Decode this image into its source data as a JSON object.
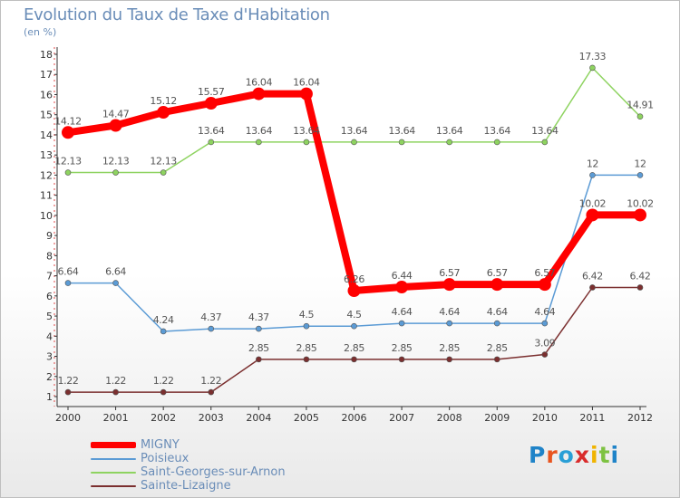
{
  "header": {
    "title": "Evolution du Taux de Taxe d'Habitation",
    "subtitle": "(en %)"
  },
  "logo": {
    "text": "Proxiti",
    "letter_colors": [
      "#1f83c8",
      "#e8541f",
      "#2a9fd6",
      "#d92b2b",
      "#f0b400",
      "#7dc242",
      "#1f83c8"
    ]
  },
  "colors": {
    "background": "#ffffff",
    "axis": "#333333",
    "label_text": "#555555",
    "title_text": "#6a8db8"
  },
  "chart_data": {
    "type": "line",
    "title": "Evolution du Taux de Taxe d'Habitation",
    "subtitle": "(en %)",
    "x": [
      "2000",
      "2001",
      "2002",
      "2003",
      "2004",
      "2005",
      "2006",
      "2007",
      "2008",
      "2009",
      "2010",
      "2011",
      "2012"
    ],
    "y_ticks": [
      "1",
      "2",
      "3",
      "4",
      "5",
      "6",
      "7",
      "8",
      "9",
      "10",
      "11",
      "12",
      "13",
      "14",
      "15",
      "16",
      "17",
      "18"
    ],
    "ylim": [
      0.5,
      18
    ],
    "grid": false,
    "legend_position": "bottom-left",
    "series": [
      {
        "name": "MIGNY",
        "color": "#ff0000",
        "values": [
          14.12,
          14.47,
          15.12,
          15.57,
          16.04,
          16.04,
          6.26,
          6.44,
          6.57,
          6.57,
          6.57,
          10.02,
          10.02
        ],
        "labels": [
          "14.12",
          "14.47",
          "15.12",
          "15.57",
          "16.04",
          "16.04",
          "6.26",
          "6.44",
          "6.57",
          "6.57",
          "6.57",
          "10.02",
          "10.02"
        ],
        "emphasis": true
      },
      {
        "name": "Poisieux",
        "color": "#5b9bd5",
        "values": [
          6.64,
          6.64,
          4.24,
          4.37,
          4.37,
          4.5,
          4.5,
          4.64,
          4.64,
          4.64,
          4.64,
          12,
          12
        ],
        "labels": [
          "6.64",
          "6.64",
          "4.24",
          "4.37",
          "4.37",
          "4.5",
          "4.5",
          "4.64",
          "4.64",
          "4.64",
          "4.64",
          "12",
          "12"
        ]
      },
      {
        "name": "Saint-Georges-sur-Arnon",
        "color": "#8ed360",
        "values": [
          12.13,
          12.13,
          12.13,
          13.64,
          13.64,
          13.64,
          13.64,
          13.64,
          13.64,
          13.64,
          13.64,
          17.33,
          14.91
        ],
        "labels": [
          "12.13",
          "12.13",
          "12.13",
          "13.64",
          "13.64",
          "13.64",
          "13.64",
          "13.64",
          "13.64",
          "13.64",
          "13.64",
          "17.33",
          "14.91"
        ]
      },
      {
        "name": "Sainte-Lizaigne",
        "color": "#7b2f2f",
        "values": [
          1.22,
          1.22,
          1.22,
          1.22,
          2.85,
          2.85,
          2.85,
          2.85,
          2.85,
          2.85,
          3.09,
          6.42,
          6.42
        ],
        "labels": [
          "1.22",
          "1.22",
          "1.22",
          "1.22",
          "2.85",
          "2.85",
          "2.85",
          "2.85",
          "2.85",
          "2.85",
          "3.09",
          "6.42",
          "6.42"
        ]
      }
    ]
  }
}
